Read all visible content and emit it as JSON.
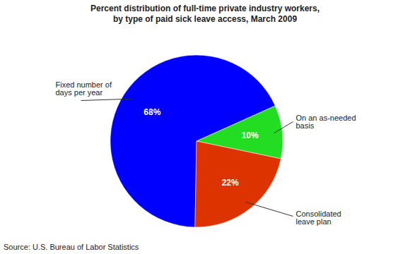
{
  "chart_data": {
    "type": "pie",
    "title": "Percent distribution of full-time private industry workers,\nby type of paid sick leave access, March 2009",
    "categories": [
      "Fixed number of days per year",
      "On an as-needed basis",
      "Consolidated leave plan"
    ],
    "values": [
      68,
      10,
      22
    ],
    "value_labels": [
      "68%",
      "10%",
      "22%"
    ],
    "colors": [
      "#0000ff",
      "#22dd22",
      "#dd3300"
    ],
    "data_labels": true,
    "caption": "Source: U.S. Bureau of Labor Statistics"
  }
}
